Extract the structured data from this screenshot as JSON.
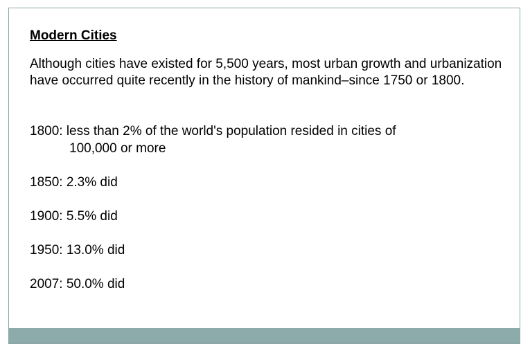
{
  "slide": {
    "title": "Modern Cities",
    "intro": "Although cities have existed for 5,500 years, most urban growth and urbanization have occurred quite recently in the history of mankind–since 1750 or 1800.",
    "facts": [
      {
        "line1": "1800: less than 2% of the world's population resided in cities of",
        "line2": "100,000 or more"
      },
      {
        "line1": "1850: 2.3% did"
      },
      {
        "line1": "1900: 5.5% did"
      },
      {
        "line1": "1950: 13.0% did"
      },
      {
        "line1": "2007: 50.0% did"
      }
    ]
  },
  "colors": {
    "border": "#8fa4a7",
    "footer_bar": "#8eabab"
  }
}
